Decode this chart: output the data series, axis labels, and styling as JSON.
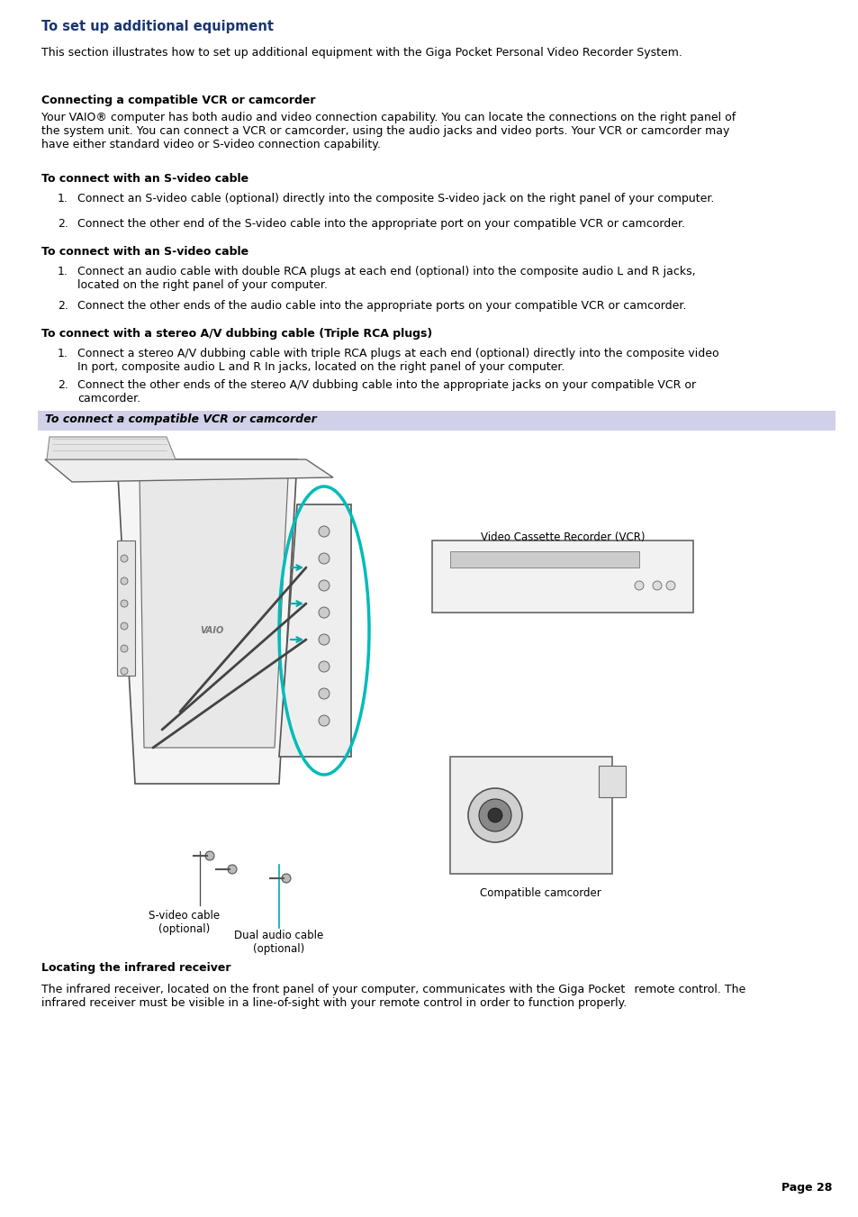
{
  "bg_color": "#ffffff",
  "title": "To set up additional equipment",
  "title_color": "#1a3570",
  "title_fontsize": 10.5,
  "body_fontsize": 9.0,
  "body_color": "#000000",
  "heading_color": "#000000",
  "highlight_bg": "#d0d0e8",
  "page_number": "Page 28",
  "lm": 0.048,
  "rm": 0.968,
  "intro_text": "This section illustrates how to set up additional equipment with the Giga Pocket Personal Video Recorder System.",
  "sec0_heading": "Connecting a compatible VCR or camcorder",
  "sec0_para": "Your VAIO® computer has both audio and video connection capability. You can locate the connections on the right panel of\nthe system unit. You can connect a VCR or camcorder, using the audio jacks and video ports. Your VCR or camcorder may\nhave either standard video or S-video connection capability.",
  "sec1_heading": "To connect with an S-video cable",
  "sec1_items": [
    "Connect an S-video cable (optional) directly into the composite S-video jack on the right panel of your computer.",
    "Connect the other end of the S-video cable into the appropriate port on your compatible VCR or camcorder."
  ],
  "sec2_heading": "To connect with an S-video cable",
  "sec2_items": [
    "Connect an audio cable with double RCA plugs at each end (optional) into the composite audio L and R jacks,\nlocated on the right panel of your computer.",
    "Connect the other ends of the audio cable into the appropriate ports on your compatible VCR or camcorder."
  ],
  "sec3_heading": "To connect with a stereo A/V dubbing cable (Triple RCA plugs)",
  "sec3_items": [
    "Connect a stereo A/V dubbing cable with triple RCA plugs at each end (optional) directly into the composite video\nIn port, composite audio L and R In jacks, located on the right panel of your computer.",
    "Connect the other ends of the stereo A/V dubbing cable into the appropriate jacks on your compatible VCR or\ncamcorder."
  ],
  "callout_text": "To connect a compatible VCR or camcorder",
  "vcr_label": "Video Cassette Recorder (VCR)",
  "svideo_label": "S-video cable\n(optional)",
  "audio_label": "Dual audio cable\n(optional)",
  "cam_label": "Compatible camcorder",
  "vaio_label": "VAIO",
  "locating_heading": "Locating the infrared receiver",
  "locating_text": "The infrared receiver, located on the front panel of your computer, communicates with the Giga Pocket  remote control. The\ninfrared receiver must be visible in a line-of-sight with your remote control in order to function properly."
}
